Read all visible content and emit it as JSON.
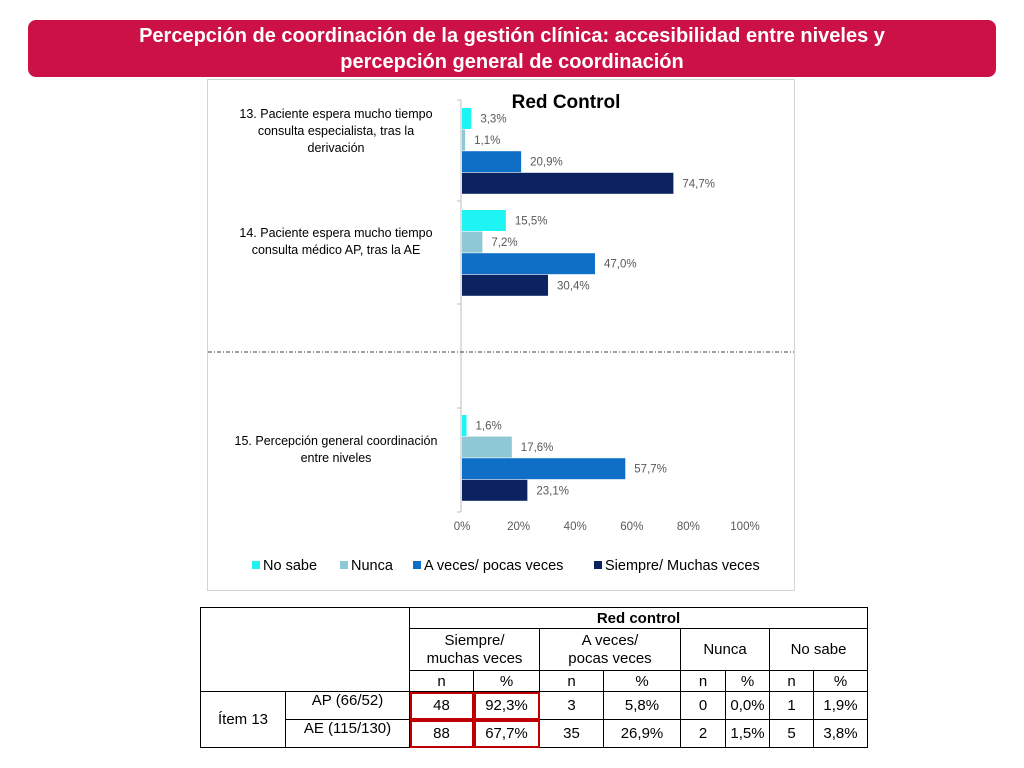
{
  "title": "Percepción de coordinación de la gestión clínica: accesibilidad entre niveles y\npercepción general de coordinación",
  "chart_data": {
    "type": "bar",
    "orientation": "horizontal",
    "title": "Red Control",
    "categories": [
      "13. Paciente espera mucho tiempo\nconsulta especialista, tras la\nderivación",
      "14. Paciente espera mucho tiempo\nconsulta  médico AP, tras la AE",
      "",
      "15. Percepción general coordinación\nentre niveles"
    ],
    "series": [
      {
        "name": "No sabe",
        "color": "#1ef4f4",
        "values": [
          3.3,
          15.5,
          null,
          1.6
        ]
      },
      {
        "name": "Nunca",
        "color": "#8ec8d4",
        "values": [
          1.1,
          7.2,
          null,
          17.6
        ]
      },
      {
        "name": "A veces/ pocas veces",
        "color": "#0f6fc6",
        "values": [
          20.9,
          47.0,
          null,
          57.7
        ]
      },
      {
        "name": "Siempre/ Muchas veces",
        "color": "#0b2460",
        "values": [
          74.7,
          30.4,
          null,
          23.1
        ]
      }
    ],
    "data_labels": [
      [
        "3,3%",
        "15,5%",
        "",
        "1,6%"
      ],
      [
        "1,1%",
        "7,2%",
        "",
        "17,6%"
      ],
      [
        "20,9%",
        "47,0%",
        "",
        "57,7%"
      ],
      [
        "74,7%",
        "30,4%",
        "",
        "23,1%"
      ]
    ],
    "x_ticks": [
      "0%",
      "20%",
      "40%",
      "60%",
      "80%",
      "100%"
    ],
    "xlim": [
      0,
      100
    ],
    "legend": "bottom",
    "grid": false
  },
  "table": {
    "group_header": "Red control",
    "col_headers": [
      "Siempre/\nmuchas veces",
      "A veces/\npocas veces",
      "Nunca",
      "No sabe"
    ],
    "sub_headers": [
      "n",
      "%",
      "n",
      "%",
      "n",
      "%",
      "n",
      "%"
    ],
    "item_label": "Ítem 13",
    "rows": [
      {
        "label": "AP (66/52)",
        "cells": [
          "48",
          "92,3%",
          "3",
          "5,8%",
          "0",
          "0,0%",
          "1",
          "1,9%"
        ]
      },
      {
        "label": "AE (115/130)",
        "cells": [
          "88",
          "67,7%",
          "35",
          "26,9%",
          "2",
          "1,5%",
          "5",
          "3,8%"
        ]
      }
    ]
  }
}
